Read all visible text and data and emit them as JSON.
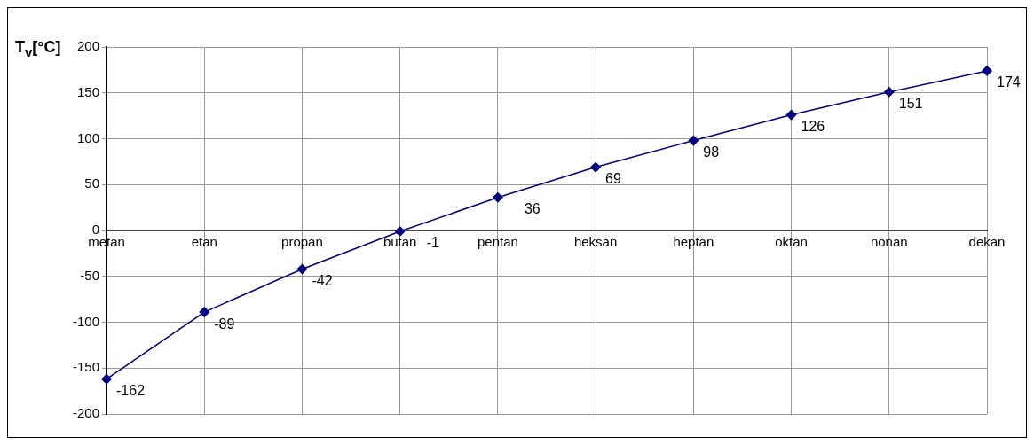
{
  "chart_data": {
    "type": "line",
    "ylabel": "T$_{v}$[°C]",
    "categories": [
      "metan",
      "etan",
      "propan",
      "butan",
      "pentan",
      "heksan",
      "heptan",
      "oktan",
      "nonan",
      "dekan"
    ],
    "series": [
      {
        "color": "#000080",
        "values": [
          -162,
          -89,
          -42,
          -1,
          36,
          69,
          98,
          126,
          151,
          174
        ]
      }
    ],
    "ylim": [
      -200,
      200
    ],
    "yticks": [
      -200,
      -150,
      -100,
      -50,
      0,
      50,
      100,
      150,
      200
    ],
    "grid": true,
    "legend": false,
    "marker": "diamond",
    "line_style": "solid",
    "data_labels": true
  }
}
